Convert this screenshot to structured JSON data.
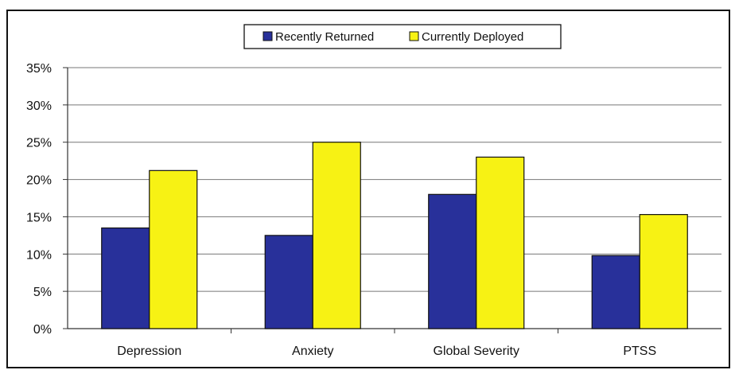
{
  "chart_data": {
    "type": "bar",
    "categories": [
      "Depression",
      "Anxiety",
      "Global Severity",
      "PTSS"
    ],
    "series": [
      {
        "name": "Recently Returned",
        "values": [
          13.5,
          12.5,
          18.0,
          9.8
        ],
        "color": "#28309a"
      },
      {
        "name": "Currently Deployed",
        "values": [
          21.2,
          25.0,
          23.0,
          15.3
        ],
        "color": "#f7f214"
      }
    ],
    "y_ticks": [
      "0%",
      "5%",
      "10%",
      "15%",
      "20%",
      "25%",
      "30%",
      "35%"
    ],
    "ylim": [
      0,
      35
    ],
    "y_unit": "%",
    "grid": true,
    "legend_position": "top-center"
  }
}
